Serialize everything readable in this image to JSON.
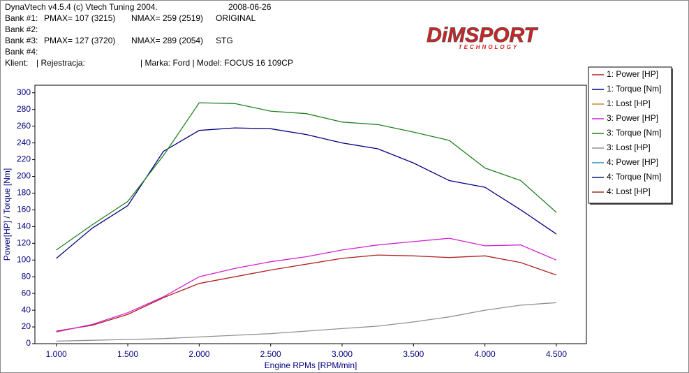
{
  "header": {
    "software": "DynaVtech v4.5.4 (c) Vtech Tuning 2004.",
    "date": "2008-06-26",
    "banks": [
      {
        "label": "Bank #1:",
        "pmax": "PMAX= 107 (3215)",
        "nmax": "NMAX= 259 (2519)",
        "note": "ORIGINAL"
      },
      {
        "label": "Bank #2:"
      },
      {
        "label": "Bank #3:",
        "pmax": "PMAX= 127 (3720)",
        "nmax": "NMAX= 289 (2054)",
        "note": "STG"
      },
      {
        "label": "Bank #4:"
      }
    ],
    "client": [
      "Klient:",
      "| Rejestracja:",
      "| Marka: Ford | Model: FOCUS 16 109CP"
    ],
    "logo": "DiMSPORT",
    "logo_sub": "TECHNOLOGY"
  },
  "chart_data": {
    "type": "line",
    "x_label": "Engine RPMs [RPM/min]",
    "y_label": "Power[HP] / Torque [Nm]",
    "x": [
      1000,
      1250,
      1500,
      1750,
      2000,
      2250,
      2500,
      2750,
      3000,
      3250,
      3500,
      3750,
      4000,
      4250,
      4500
    ],
    "series": [
      {
        "name": "1: Power [HP]",
        "color": "#b22222",
        "values": [
          15,
          22,
          35,
          55,
          72,
          80,
          88,
          95,
          102,
          106,
          105,
          103,
          105,
          97,
          82
        ]
      },
      {
        "name": "1: Torque [Nm]",
        "color": "#000080",
        "values": [
          102,
          138,
          165,
          230,
          255,
          258,
          257,
          250,
          240,
          233,
          216,
          195,
          187,
          160,
          131
        ]
      },
      {
        "name": "1: Lost [HP]",
        "color": "#c8872b",
        "values": [
          null,
          null,
          null,
          null,
          null,
          null,
          null,
          null,
          null,
          null,
          null,
          null,
          null,
          null,
          null
        ]
      },
      {
        "name": "3: Power [HP]",
        "color": "#d020d0",
        "values": [
          14,
          23,
          37,
          56,
          80,
          90,
          98,
          104,
          112,
          118,
          122,
          126,
          117,
          118,
          100
        ]
      },
      {
        "name": "3: Torque [Nm]",
        "color": "#208020",
        "values": [
          112,
          142,
          170,
          225,
          288,
          287,
          278,
          275,
          265,
          262,
          253,
          243,
          210,
          195,
          157
        ]
      },
      {
        "name": "3: Lost [HP]",
        "color": "#909090",
        "values": [
          3,
          4,
          5,
          6,
          8,
          10,
          12,
          15,
          18,
          21,
          26,
          32,
          40,
          46,
          49
        ]
      },
      {
        "name": "4: Power [HP]",
        "color": "#3090c0",
        "values": [
          null,
          null,
          null,
          null,
          null,
          null,
          null,
          null,
          null,
          null,
          null,
          null,
          null,
          null,
          null
        ]
      },
      {
        "name": "4: Torque [Nm]",
        "color": "#102070",
        "values": [
          null,
          null,
          null,
          null,
          null,
          null,
          null,
          null,
          null,
          null,
          null,
          null,
          null,
          null,
          null
        ]
      },
      {
        "name": "4: Lost [HP]",
        "color": "#a03020",
        "values": [
          null,
          null,
          null,
          null,
          null,
          null,
          null,
          null,
          null,
          null,
          null,
          null,
          null,
          null,
          null
        ]
      }
    ],
    "xlim": [
      850,
      4710
    ],
    "ylim": [
      0,
      309
    ],
    "xticks": [
      {
        "value": 1000,
        "label": "1.000"
      },
      {
        "value": 1500,
        "label": "1.500"
      },
      {
        "value": 2000,
        "label": "2.000"
      },
      {
        "value": 2500,
        "label": "2.500"
      },
      {
        "value": 3000,
        "label": "3.000"
      },
      {
        "value": 3500,
        "label": "3.500"
      },
      {
        "value": 4000,
        "label": "4.000"
      },
      {
        "value": 4500,
        "label": "4.500"
      }
    ],
    "yticks": [
      0,
      20,
      40,
      60,
      80,
      100,
      120,
      140,
      160,
      180,
      200,
      220,
      240,
      260,
      280,
      300
    ],
    "grid": false,
    "legend": "right"
  }
}
